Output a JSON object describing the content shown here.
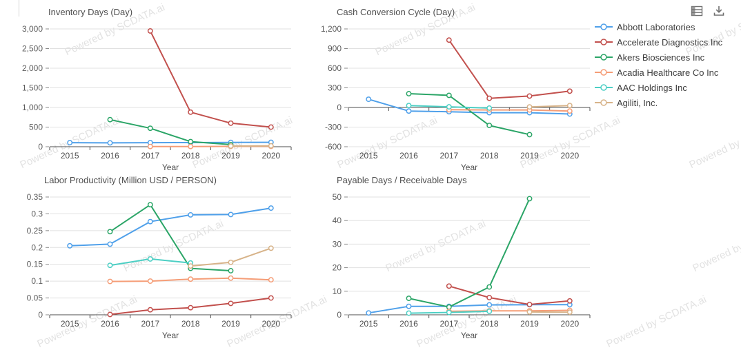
{
  "watermark": {
    "text": "Powered by SCDATA.ai"
  },
  "toolbar": {
    "icons": [
      {
        "name": "data-view"
      },
      {
        "name": "download"
      }
    ]
  },
  "legend": {
    "position": "right",
    "items": [
      {
        "label": "Abbott Laboratories",
        "color": "#4FA0EA"
      },
      {
        "label": "Accelerate Diagnostics Inc",
        "color": "#C2504D"
      },
      {
        "label": "Akers Biosciences Inc",
        "color": "#2BA567"
      },
      {
        "label": "Acadia Healthcare Co Inc",
        "color": "#F59D77"
      },
      {
        "label": "AAC Holdings Inc",
        "color": "#4CCFC4"
      },
      {
        "label": "Agiliti, Inc.",
        "color": "#D7B389"
      }
    ]
  },
  "chart_data": [
    {
      "type": "line",
      "title": "Inventory Days (Day)",
      "xlabel": "Year",
      "grid": true,
      "legend_position": "right",
      "categories": [
        "2015",
        "2016",
        "2017",
        "2018",
        "2019",
        "2020"
      ],
      "ylim": [
        0,
        3000
      ],
      "ytick_values": [
        0,
        500,
        1000,
        1500,
        2000,
        2500,
        3000
      ],
      "ytick_labels": [
        "0",
        "500",
        "1,000",
        "1,500",
        "2,000",
        "2,500",
        "3,000"
      ],
      "series": [
        {
          "name": "Abbott Laboratories",
          "values": [
            103,
            98,
            103,
            105,
            110,
            112
          ]
        },
        {
          "name": "Accelerate Diagnostics Inc",
          "values": [
            null,
            null,
            2950,
            880,
            600,
            500
          ]
        },
        {
          "name": "Akers Biosciences Inc",
          "values": [
            null,
            690,
            470,
            130,
            55,
            null
          ]
        },
        {
          "name": "Acadia Healthcare Co Inc",
          "values": [
            null,
            null,
            6,
            6,
            8,
            10
          ]
        },
        {
          "name": "Agiliti, Inc.",
          "values": [
            null,
            null,
            null,
            null,
            18,
            22
          ]
        }
      ]
    },
    {
      "type": "line",
      "title": "Cash Conversion Cycle (Day)",
      "xlabel": "Year",
      "grid": true,
      "legend_position": "right",
      "categories": [
        "2015",
        "2016",
        "2017",
        "2018",
        "2019",
        "2020"
      ],
      "ylim": [
        -600,
        1200
      ],
      "ytick_values": [
        -600,
        -300,
        0,
        300,
        600,
        900,
        1200
      ],
      "ytick_labels": [
        "-600",
        "-300",
        "0",
        "300",
        "600",
        "900",
        "1,200"
      ],
      "series": [
        {
          "name": "Abbott Laboratories",
          "values": [
            125,
            -55,
            -65,
            -80,
            -80,
            -100
          ]
        },
        {
          "name": "Accelerate Diagnostics Inc",
          "values": [
            null,
            null,
            1030,
            140,
            175,
            250
          ]
        },
        {
          "name": "Akers Biosciences Inc",
          "values": [
            null,
            210,
            185,
            -275,
            -415,
            null
          ]
        },
        {
          "name": "Acadia Healthcare Co Inc",
          "values": [
            null,
            null,
            -35,
            -38,
            -38,
            -55
          ]
        },
        {
          "name": "AAC Holdings Inc",
          "values": [
            null,
            30,
            10,
            -10,
            null,
            null
          ]
        },
        {
          "name": "Agiliti, Inc.",
          "values": [
            null,
            null,
            null,
            null,
            8,
            30
          ]
        }
      ]
    },
    {
      "type": "line",
      "title": "Labor Productivity (Million USD / PERSON)",
      "xlabel": "Year",
      "grid": true,
      "legend_position": "right",
      "categories": [
        "2015",
        "2016",
        "2017",
        "2018",
        "2019",
        "2020"
      ],
      "ylim": [
        0,
        0.35
      ],
      "ytick_values": [
        0,
        0.05,
        0.1,
        0.15,
        0.2,
        0.25,
        0.3,
        0.35
      ],
      "ytick_labels": [
        "0",
        "0.05",
        "0.1",
        "0.15",
        "0.2",
        "0.25",
        "0.3",
        "0.35"
      ],
      "series": [
        {
          "name": "Abbott Laboratories",
          "values": [
            0.205,
            0.21,
            0.277,
            0.297,
            0.298,
            0.317
          ]
        },
        {
          "name": "Accelerate Diagnostics Inc",
          "values": [
            null,
            0.001,
            0.015,
            0.021,
            0.034,
            0.05
          ]
        },
        {
          "name": "Akers Biosciences Inc",
          "values": [
            null,
            0.247,
            0.327,
            0.138,
            0.131,
            null
          ]
        },
        {
          "name": "Acadia Healthcare Co Inc",
          "values": [
            null,
            0.099,
            0.1,
            0.106,
            0.109,
            0.104
          ]
        },
        {
          "name": "AAC Holdings Inc",
          "values": [
            null,
            0.147,
            0.166,
            0.154,
            null,
            null
          ]
        },
        {
          "name": "Agiliti, Inc.",
          "values": [
            null,
            null,
            null,
            0.145,
            0.156,
            0.198
          ]
        }
      ]
    },
    {
      "type": "line",
      "title": "Payable Days / Receivable Days",
      "xlabel": "Year",
      "grid": true,
      "legend_position": "right",
      "categories": [
        "2015",
        "2016",
        "2017",
        "2018",
        "2019",
        "2020"
      ],
      "ylim": [
        0,
        50
      ],
      "ytick_values": [
        0,
        10,
        20,
        30,
        40,
        50
      ],
      "ytick_labels": [
        "0",
        "10",
        "20",
        "30",
        "40",
        "50"
      ],
      "series": [
        {
          "name": "Abbott Laboratories",
          "values": [
            0.8,
            3.6,
            3.6,
            4.2,
            4.3,
            4.3
          ]
        },
        {
          "name": "Accelerate Diagnostics Inc",
          "values": [
            null,
            null,
            12.2,
            7.3,
            4.4,
            5.9
          ]
        },
        {
          "name": "Akers Biosciences Inc",
          "values": [
            null,
            7,
            3.3,
            11.8,
            49.3,
            null
          ]
        },
        {
          "name": "Acadia Healthcare Co Inc",
          "values": [
            null,
            null,
            1.5,
            1.7,
            1.7,
            1.9
          ]
        },
        {
          "name": "AAC Holdings Inc",
          "values": [
            null,
            0.7,
            1.0,
            1.5,
            null,
            null
          ]
        },
        {
          "name": "Agiliti, Inc.",
          "values": [
            null,
            null,
            null,
            null,
            1.2,
            1.1
          ]
        }
      ]
    }
  ]
}
